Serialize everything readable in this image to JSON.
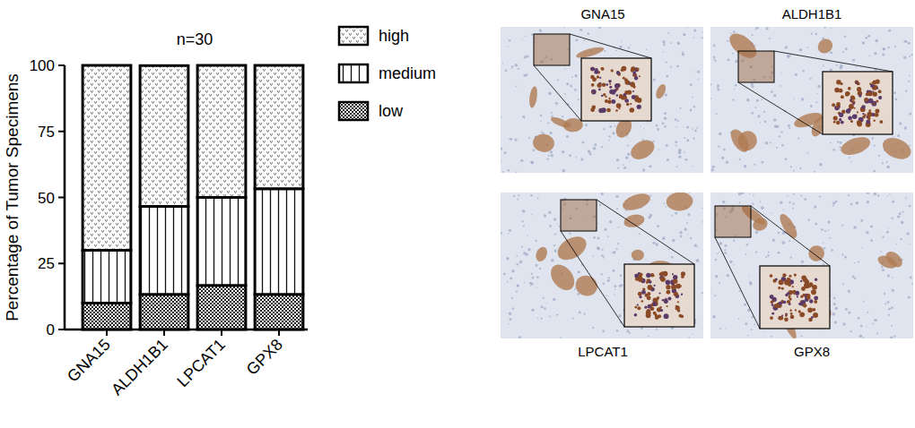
{
  "chart_data": {
    "type": "bar",
    "stacked": true,
    "title": "n=30",
    "y_label": "Percentage of Tumor Specimens",
    "categories": [
      "GNA15",
      "ALDH1B1",
      "LPCAT1",
      "GPX8"
    ],
    "series": [
      {
        "name": "low",
        "values": [
          10,
          13.3,
          16.7,
          13.3
        ]
      },
      {
        "name": "medium",
        "values": [
          20,
          33.3,
          33.3,
          40
        ]
      },
      {
        "name": "high",
        "values": [
          70,
          53.3,
          50,
          46.7
        ]
      }
    ],
    "ylim": [
      0,
      100
    ],
    "yticks": [
      0,
      25,
      50,
      75,
      100
    ],
    "grid": false,
    "legend": "right"
  },
  "ihc_panels": [
    "GNA15",
    "ALDH1B1",
    "LPCAT1",
    "GPX8"
  ]
}
